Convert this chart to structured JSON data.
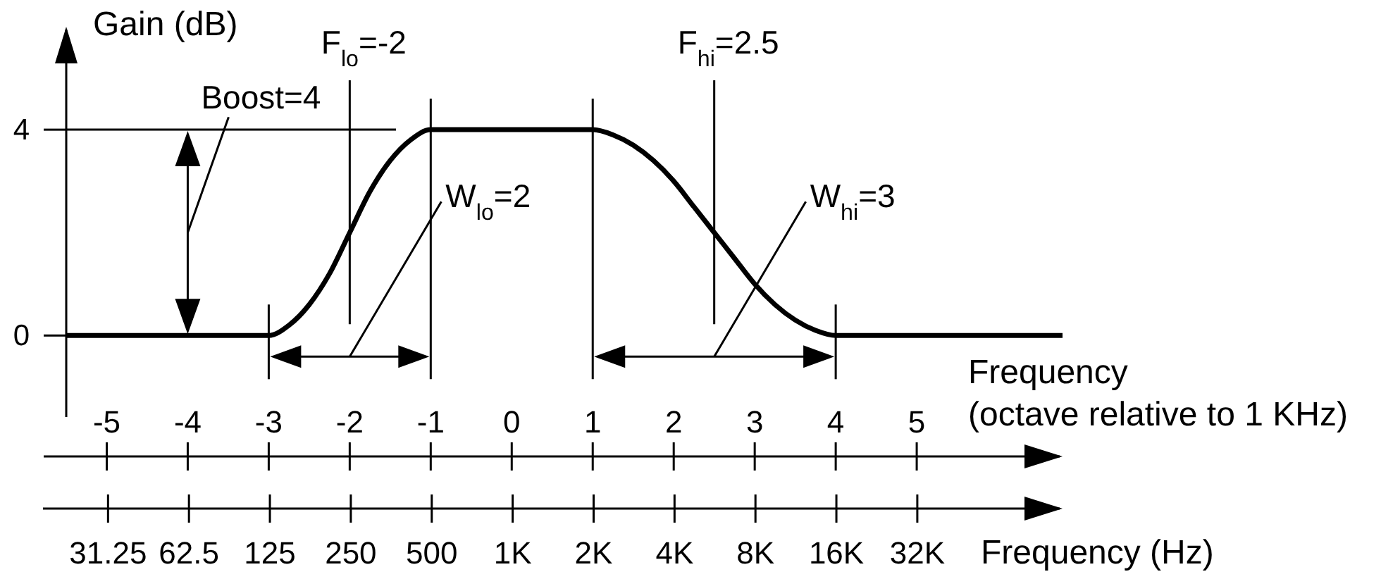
{
  "chart_data": {
    "type": "line",
    "xlabel": "Frequency\n(octave relative to 1 KHz)",
    "ylabel": "Gain (dB)",
    "x2label": "Frequency (Hz)",
    "xlim": [
      -5.5,
      6.8
    ],
    "xticks": [
      -5,
      -4,
      -3,
      -2,
      -1,
      0,
      1,
      2,
      3,
      4,
      5
    ],
    "x2lim": [
      17.9,
      111000
    ],
    "x2ticks": [
      31.25,
      62.5,
      125,
      250,
      500,
      {
        "value": 1000,
        "label": "1K"
      },
      {
        "value": 2000,
        "label": "2K"
      },
      {
        "value": 4000,
        "label": "4K"
      },
      {
        "value": 8000,
        "label": "8K"
      },
      {
        "value": 16000,
        "label": "16K"
      },
      {
        "value": 32000,
        "label": "32K"
      }
    ],
    "log": "x2",
    "ylim": [
      -2.35,
      6
    ],
    "yticks": [
      0,
      4
    ],
    "series": [
      {
        "color": "#000000",
        "x": [
          -5.5,
          -3,
          -2.75,
          -2.5,
          -2.25,
          -2,
          -1.75,
          -1.5,
          -1.25,
          -1,
          1,
          1.25,
          1.5,
          1.75,
          2,
          2.25,
          2.5,
          2.75,
          3,
          3.25,
          3.5,
          3.75,
          4,
          6.8
        ],
        "values": [
          0,
          0,
          0.2,
          0.6,
          1.2,
          2,
          2.8,
          3.4,
          3.8,
          4,
          4,
          3.9,
          3.7,
          3.4,
          3,
          2.5,
          2,
          1.5,
          1,
          0.6,
          0.3,
          0.1,
          0,
          0
        ]
      }
    ],
    "ref_lines": [
      {
        "axis": "x",
        "value": -2,
        "label": "F$_{lo}$=-2"
      },
      {
        "axis": "x",
        "value": 2.5,
        "label": "F$_{hi}$=2.5"
      },
      {
        "axis": "y",
        "value": 4
      },
      {
        "axis": "x",
        "value": -3
      },
      {
        "axis": "x",
        "value": -1
      },
      {
        "axis": "x",
        "value": 1
      },
      {
        "axis": "x",
        "value": 4
      }
    ],
    "annotations": [
      {
        "text": "Boost=4",
        "x": -4,
        "y": 0
      },
      "W$_{lo}$=2",
      "W$_{hi}$=3"
    ]
  }
}
